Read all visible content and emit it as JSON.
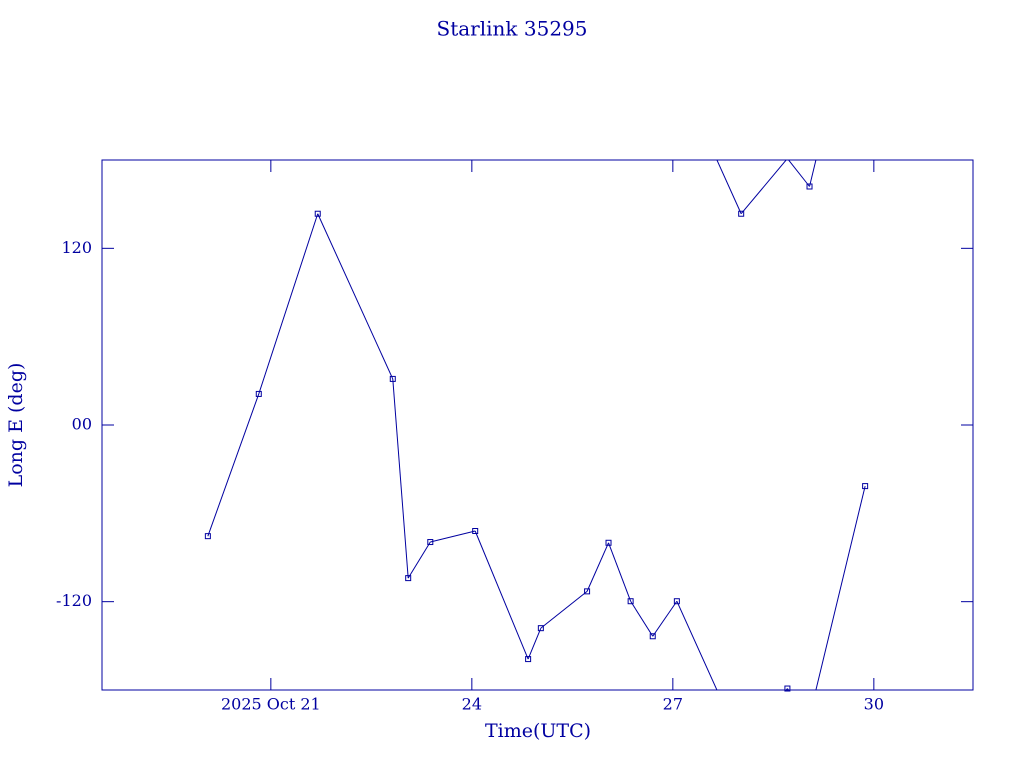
{
  "chart_data": {
    "type": "line",
    "title": "Starlink 35295",
    "x_label": "Time(UTC)",
    "y_label": "Long E (deg)",
    "color": "#0000a0",
    "markers": true,
    "wrap": true,
    "xlim": [
      18.48,
      31.48
    ],
    "xticks": [
      {
        "value": 21,
        "label": "2025 Oct 21"
      },
      24,
      27,
      30
    ],
    "ylim": [
      -180,
      180
    ],
    "yticks": [
      -120,
      {
        "value": 0,
        "label": "00"
      },
      120
    ],
    "x": [
      20.06,
      20.82,
      21.7,
      22.82,
      23.05,
      23.38,
      24.05,
      24.84,
      25.03,
      25.72,
      26.04,
      26.37,
      26.7,
      27.06,
      28.02,
      28.71,
      29.04,
      29.87
    ],
    "values": [
      -75.5,
      21.1,
      143.5,
      31.3,
      -104,
      -79.5,
      -72,
      -159,
      -138,
      -113,
      -80,
      -119.7,
      -143.5,
      -119.7,
      143.5,
      -179,
      162,
      -41.5
    ]
  }
}
